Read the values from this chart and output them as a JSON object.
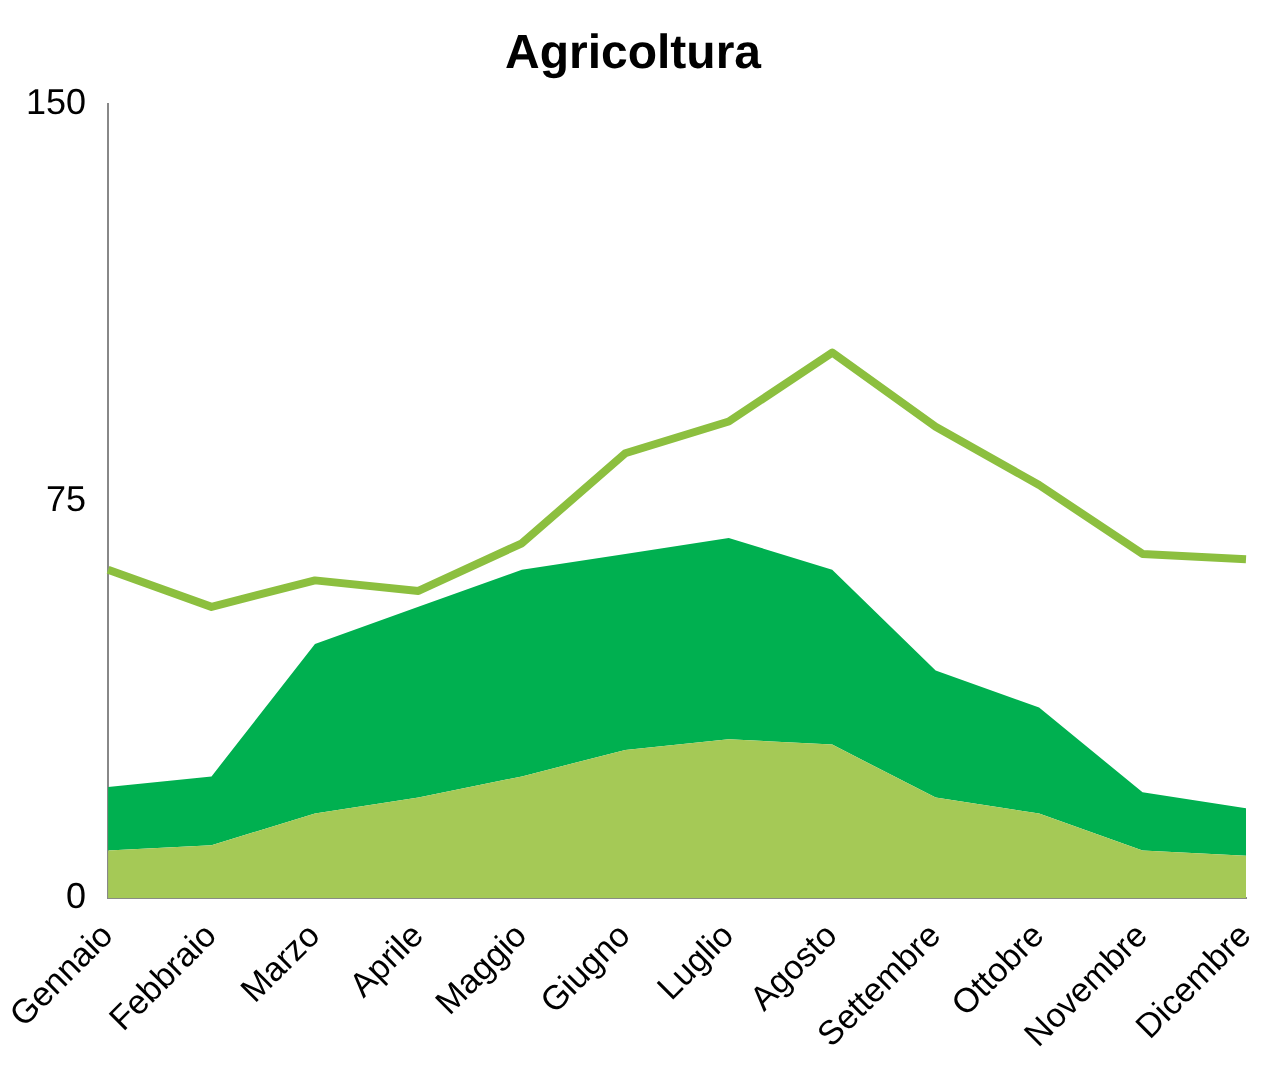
{
  "chart_data": {
    "type": "area",
    "title": "Agricoltura",
    "categories": [
      "Gennaio",
      "Febbraio",
      "Marzo",
      "Aprile",
      "Maggio",
      "Giugno",
      "Luglio",
      "Agosto",
      "Settembre",
      "Ottobre",
      "Novembre",
      "Dicembre"
    ],
    "stacked": true,
    "series": [
      {
        "color": "#a5c956",
        "values": [
          9,
          10,
          16,
          19,
          23,
          28,
          30,
          29,
          19,
          16,
          9,
          8
        ]
      },
      {
        "color": "#00b050",
        "values": [
          12,
          13,
          32,
          36,
          39,
          37,
          38,
          33,
          24,
          20,
          11,
          9
        ]
      },
      {
        "type": "line",
        "color": "#8cbf3f",
        "values": [
          62,
          55,
          60,
          58,
          67,
          84,
          90,
          103,
          89,
          78,
          65,
          64
        ]
      }
    ],
    "ylim": [
      0,
      150
    ],
    "yticks": [
      0,
      75,
      150
    ],
    "grid": false,
    "legend": false,
    "marker": "none"
  }
}
